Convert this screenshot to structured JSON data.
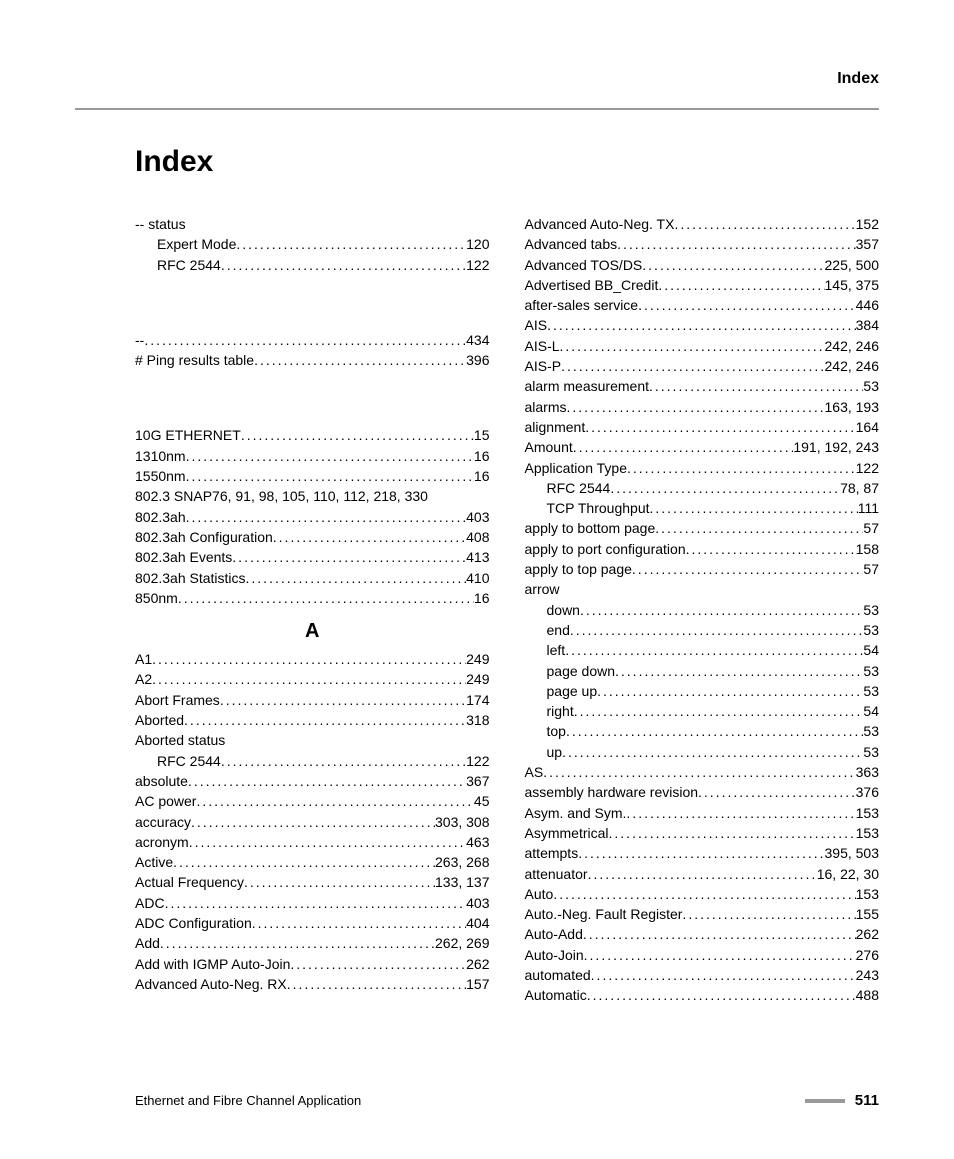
{
  "header": {
    "title": "Index"
  },
  "mainTitle": "Index",
  "footer": {
    "text": "Ethernet and Fibre Channel Application",
    "pagenum": "511"
  },
  "letterA": "A",
  "col1": {
    "g1": [
      {
        "label": "-- status",
        "page": "",
        "nopage": true
      },
      {
        "label": "Expert Mode",
        "page": "120",
        "indent": 1
      },
      {
        "label": "RFC 2544",
        "page": "122",
        "indent": 1
      }
    ],
    "g2": [
      {
        "label": "--",
        "page": "434"
      },
      {
        "label": "# Ping results table",
        "page": "396"
      }
    ],
    "g3": [
      {
        "label": "10G ETHERNET",
        "page": "15"
      },
      {
        "label": "1310nm",
        "page": "16"
      },
      {
        "label": "1550nm",
        "page": "16"
      },
      {
        "label": "802.3 SNAP76, 91, 98, 105, 110, 112, 218, 330",
        "long": true
      },
      {
        "label": "802.3ah",
        "page": "403"
      },
      {
        "label": "802.3ah Configuration",
        "page": "408"
      },
      {
        "label": "802.3ah Events",
        "page": "413"
      },
      {
        "label": "802.3ah Statistics",
        "page": "410"
      },
      {
        "label": "850nm",
        "page": "16"
      }
    ],
    "g4": [
      {
        "label": "A1",
        "page": "249"
      },
      {
        "label": "A2",
        "page": "249"
      },
      {
        "label": "Abort Frames",
        "page": "174"
      },
      {
        "label": "Aborted",
        "page": "318"
      },
      {
        "label": "Aborted status",
        "page": "",
        "nopage": true
      },
      {
        "label": "RFC 2544",
        "page": "122",
        "indent": 1
      },
      {
        "label": "absolute",
        "page": "367"
      },
      {
        "label": "AC power",
        "page": "45"
      },
      {
        "label": "accuracy",
        "page": "303, 308"
      },
      {
        "label": "acronym",
        "page": "463"
      },
      {
        "label": "Active",
        "page": "263, 268"
      },
      {
        "label": "Actual Frequency",
        "page": "133, 137"
      },
      {
        "label": "ADC",
        "page": "403"
      },
      {
        "label": "ADC Configuration",
        "page": "404"
      },
      {
        "label": "Add",
        "page": "262, 269"
      },
      {
        "label": "Add with IGMP Auto-Join",
        "page": "262"
      },
      {
        "label": "Advanced Auto-Neg. RX",
        "page": "157"
      }
    ]
  },
  "col2": {
    "g1": [
      {
        "label": "Advanced Auto-Neg. TX",
        "page": "152"
      },
      {
        "label": "Advanced tabs",
        "page": "357"
      },
      {
        "label": "Advanced TOS/DS",
        "page": "225, 500"
      },
      {
        "label": "Advertised BB_Credit",
        "page": "145, 375"
      },
      {
        "label": "after-sales service",
        "page": "446"
      },
      {
        "label": "AIS",
        "page": "384"
      },
      {
        "label": "AIS-L",
        "page": "242, 246"
      },
      {
        "label": "AIS-P",
        "page": "242, 246"
      },
      {
        "label": "alarm measurement",
        "page": "53"
      },
      {
        "label": "alarms",
        "page": "163, 193"
      },
      {
        "label": "alignment",
        "page": "164"
      },
      {
        "label": "Amount",
        "page": "191, 192, 243"
      },
      {
        "label": "Application Type",
        "page": "122"
      },
      {
        "label": "RFC 2544",
        "page": "78, 87",
        "indent": 1
      },
      {
        "label": "TCP Throughput",
        "page": "111",
        "indent": 1
      },
      {
        "label": "apply to bottom page",
        "page": "57"
      },
      {
        "label": "apply to port configuration",
        "page": "158"
      },
      {
        "label": "apply to top page",
        "page": "57"
      },
      {
        "label": "arrow",
        "page": "",
        "nopage": true
      },
      {
        "label": "down",
        "page": "53",
        "indent": 1
      },
      {
        "label": "end",
        "page": "53",
        "indent": 1
      },
      {
        "label": "left",
        "page": "54",
        "indent": 1
      },
      {
        "label": "page down",
        "page": "53",
        "indent": 1
      },
      {
        "label": "page up",
        "page": "53",
        "indent": 1
      },
      {
        "label": "right",
        "page": "54",
        "indent": 1
      },
      {
        "label": "top",
        "page": "53",
        "indent": 1
      },
      {
        "label": "up",
        "page": "53",
        "indent": 1
      },
      {
        "label": "AS",
        "page": "363"
      },
      {
        "label": "assembly hardware revision",
        "page": "376"
      },
      {
        "label": "Asym. and Sym.",
        "page": "153"
      },
      {
        "label": "Asymmetrical",
        "page": "153"
      },
      {
        "label": "attempts",
        "page": "395, 503"
      },
      {
        "label": "attenuator",
        "page": "16, 22, 30"
      },
      {
        "label": "Auto",
        "page": "153"
      },
      {
        "label": "Auto.-Neg. Fault Register",
        "page": "155"
      },
      {
        "label": "Auto-Add",
        "page": "262"
      },
      {
        "label": "Auto-Join",
        "page": "276"
      },
      {
        "label": "automated",
        "page": "243"
      },
      {
        "label": "Automatic",
        "page": "488"
      }
    ]
  }
}
